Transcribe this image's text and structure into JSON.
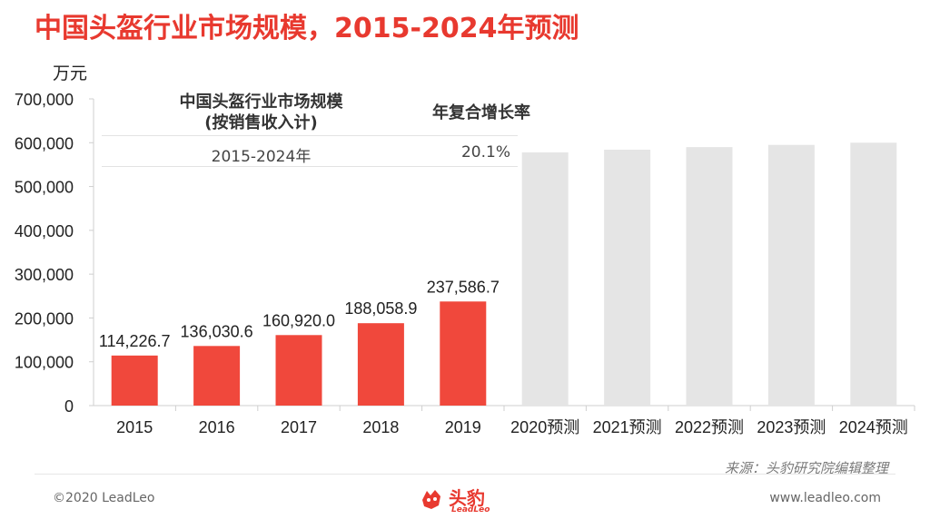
{
  "title": "中国头盔行业市场规模，2015-2024年预测",
  "unit": "万元",
  "table": {
    "header_left_line1": "中国头盔行业市场规模",
    "header_left_line2": "(按销售收入计)",
    "header_right": "年复合增长率",
    "period": "2015-2024年",
    "cagr": "20.1%"
  },
  "chart_data": {
    "type": "bar",
    "ylabel": "万元",
    "ylim": [
      0,
      700000
    ],
    "yticks": [
      "0",
      "100,000",
      "200,000",
      "300,000",
      "400,000",
      "500,000",
      "600,000",
      "700,000"
    ],
    "categories": [
      "2015",
      "2016",
      "2017",
      "2018",
      "2019",
      "2020预测",
      "2021预测",
      "2022预测",
      "2023预测",
      "2024预测"
    ],
    "values": [
      114226.7,
      136030.6,
      160920.0,
      188058.9,
      237586.7,
      578000,
      584000,
      590000,
      595000,
      600000
    ],
    "data_labels": [
      "114,226.7",
      "136,030.6",
      "160,920.0",
      "188,058.9",
      "237,586.7",
      "",
      "",
      "",
      "",
      ""
    ],
    "colors": {
      "actual": "#f0483c",
      "forecast": "#e5e5e5"
    },
    "grid": false
  },
  "footer": {
    "source": "来源：头豹研究院编辑整理",
    "copyright": "©2020 LeadLeo",
    "website": "www.leadleo.com",
    "logo_cn": "头豹",
    "logo_en": "LeadLeo"
  }
}
